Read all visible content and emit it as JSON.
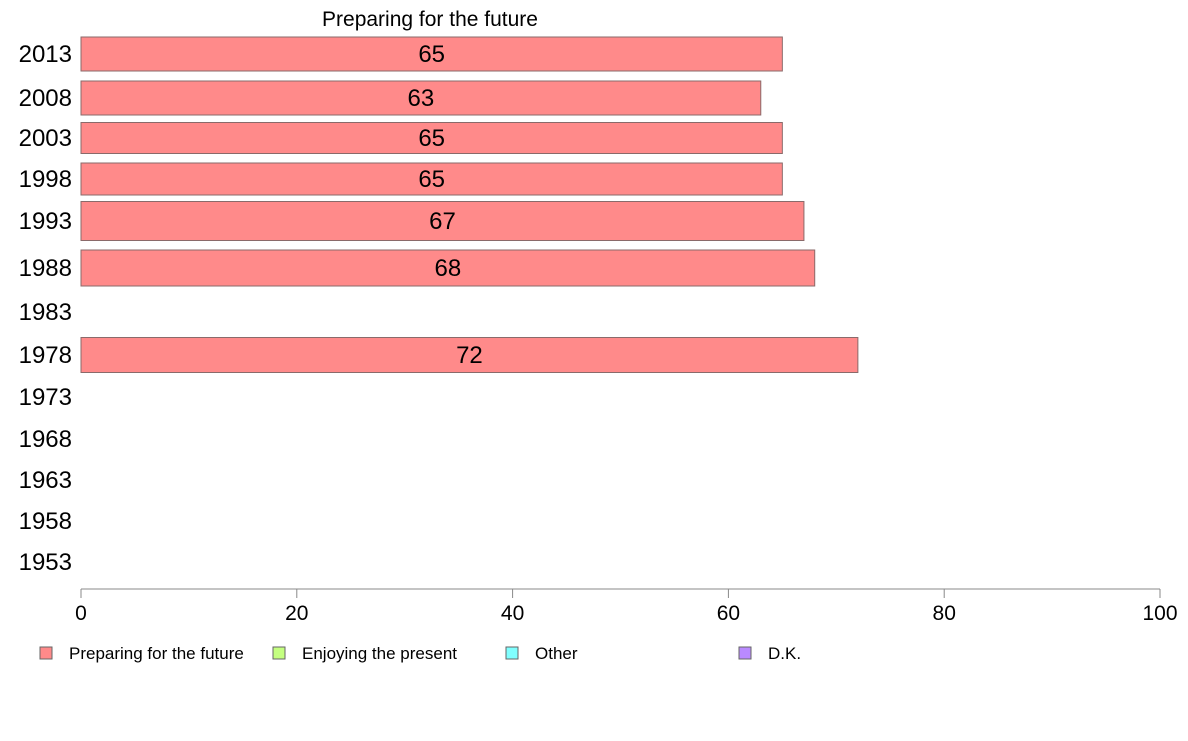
{
  "chart_data": {
    "type": "bar",
    "orientation": "horizontal",
    "title": "Preparing for the future",
    "xlabel": "",
    "ylabel": "",
    "xlim": [
      0,
      100
    ],
    "x_ticks": [
      0,
      20,
      40,
      60,
      80,
      100
    ],
    "grid": false,
    "categories": [
      "2013",
      "2008",
      "2003",
      "1998",
      "1993",
      "1988",
      "1983",
      "1978",
      "1973",
      "1968",
      "1963",
      "1958",
      "1953"
    ],
    "series": [
      {
        "name": "Preparing for the future",
        "color": "#ff8a8a",
        "values": [
          65,
          63,
          65,
          65,
          67,
          68,
          null,
          72,
          null,
          null,
          null,
          null,
          null
        ]
      }
    ],
    "data_labels": [
      "65",
      "63",
      "65",
      "65",
      "67",
      "68",
      "",
      "72",
      "",
      "",
      "",
      "",
      ""
    ],
    "legend": {
      "placement": "bottom",
      "items": [
        {
          "label": "Preparing for the future",
          "color": "#ff8a8a"
        },
        {
          "label": "Enjoying the present",
          "color": "#c4ff80"
        },
        {
          "label": "Other",
          "color": "#80ffff"
        },
        {
          "label": "D.K.",
          "color": "#b98aff"
        }
      ]
    }
  }
}
